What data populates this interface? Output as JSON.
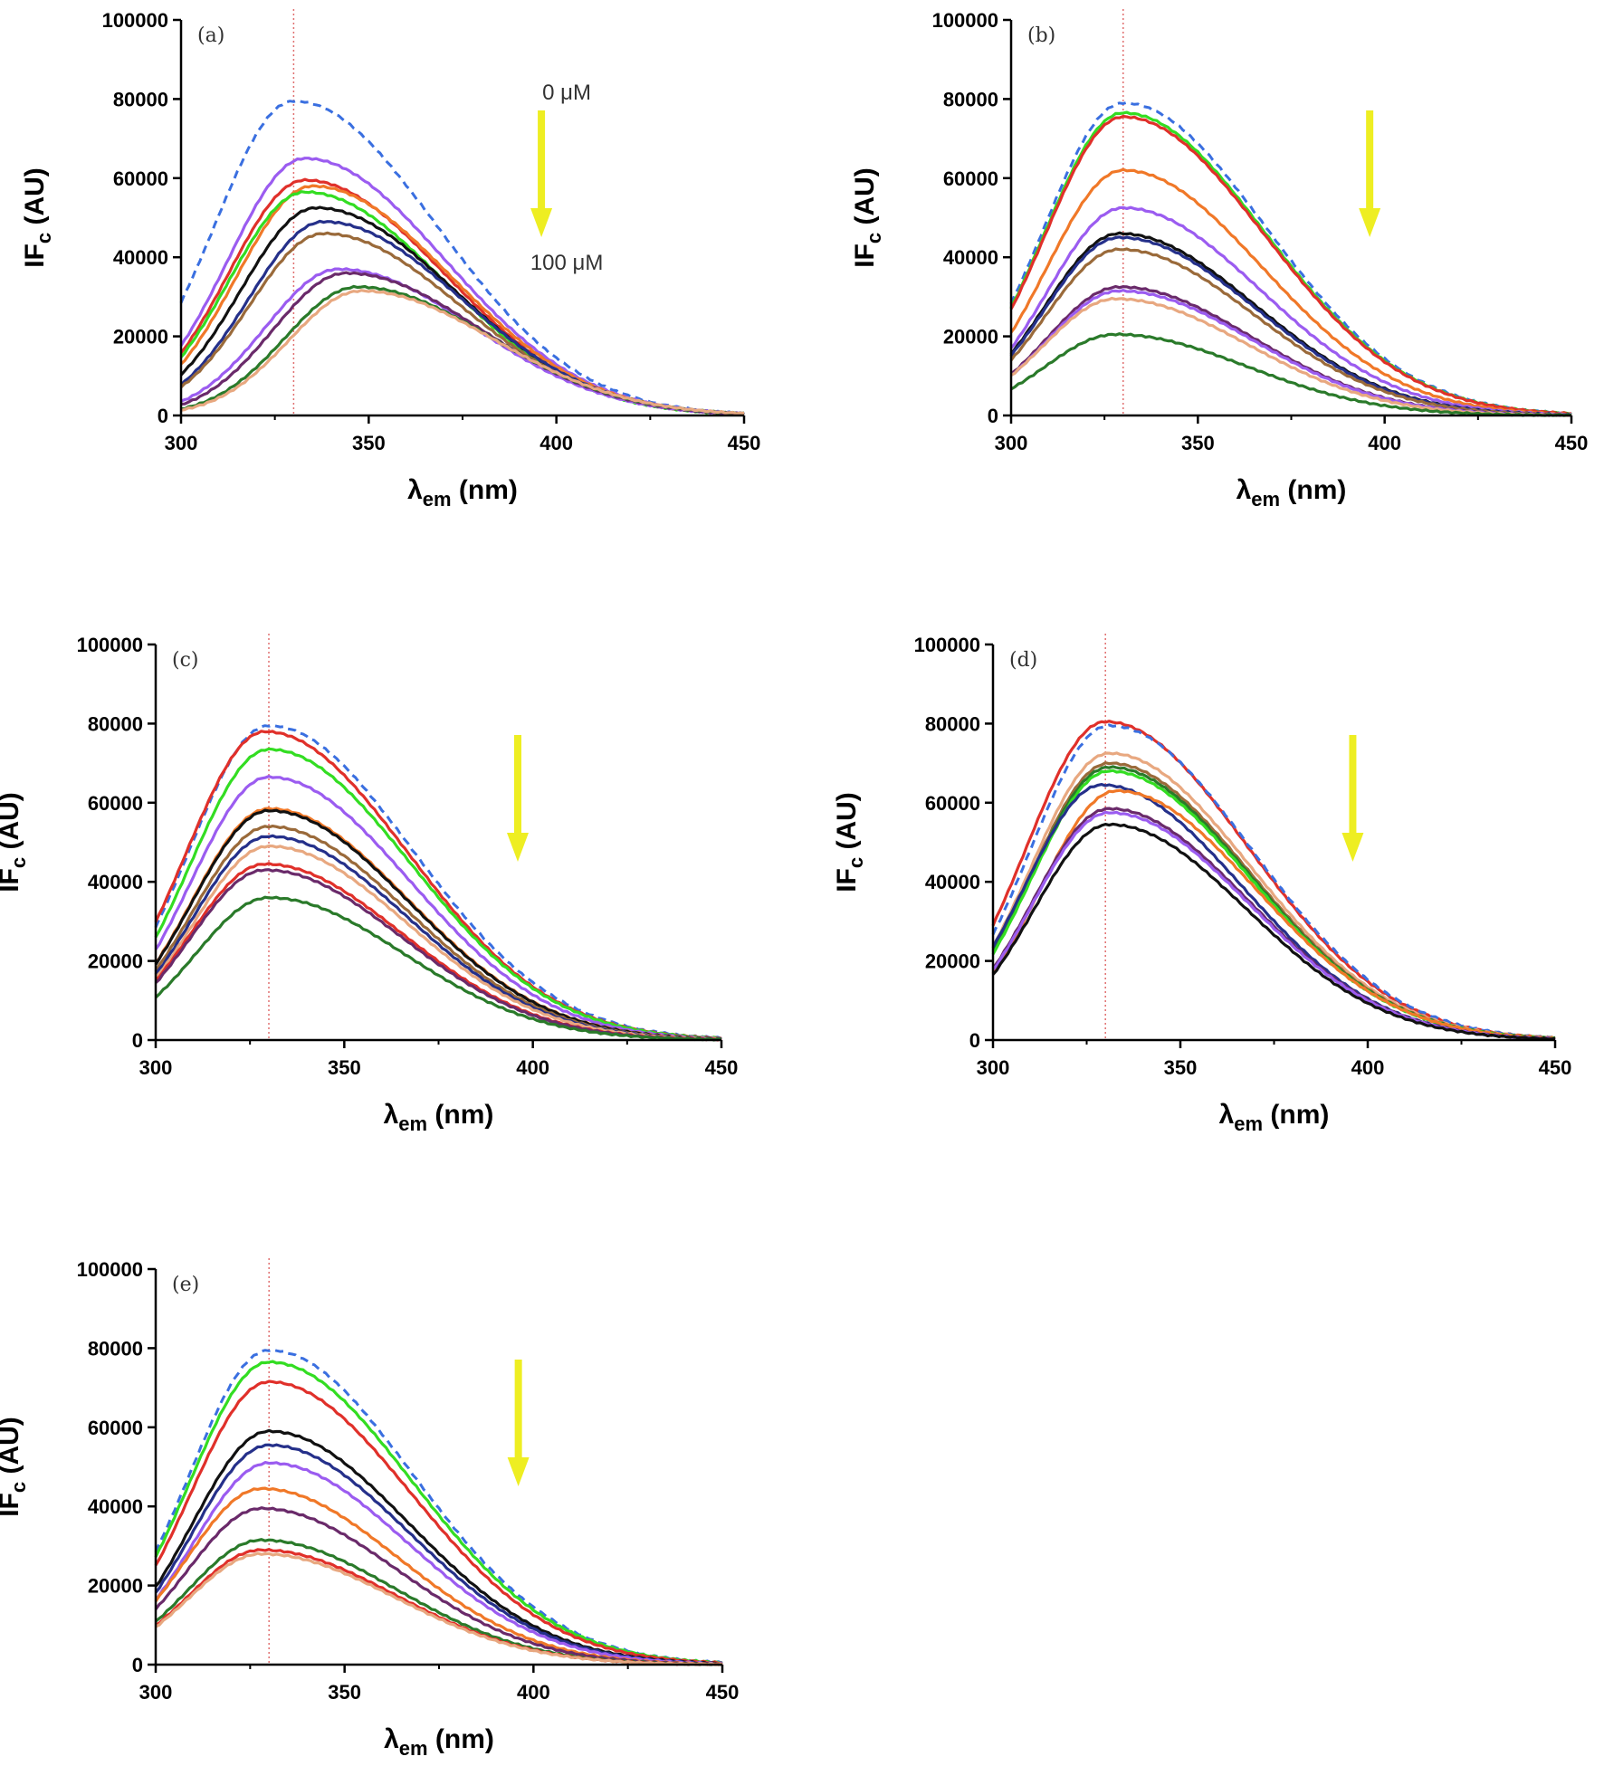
{
  "layout_note_free": true,
  "colors": {
    "c0": "#3a6fe0",
    "c1": "#e0302a",
    "c2": "#33dd22",
    "c3": "#f07828",
    "c4": "#9b5cf0",
    "c5": "#111111",
    "c6": "#25308a",
    "c7": "#9a6a3a",
    "c8": "#6a2a6a",
    "c9": "#e8a880",
    "c10": "#2a7a2a",
    "arrow": "#eeee22",
    "guide": "#e07070"
  },
  "chart_data": [
    {
      "type": "line",
      "panel_label": "(a)",
      "xlabel": "λem (nm)",
      "ylabel": "IFc (AU)",
      "xlim": [
        300,
        450
      ],
      "ylim": [
        0,
        100000
      ],
      "xticks": [
        "300",
        "350",
        "400",
        "450"
      ],
      "yticks": [
        "0",
        "20000",
        "40000",
        "60000",
        "80000",
        "100000"
      ],
      "guide_x": 330,
      "arrow_top_label": "0 μM",
      "arrow_bottom_label": "100 μM",
      "series": [
        {
          "color": "c0",
          "dashed": true,
          "peak_x": 330,
          "peak_y": 79500
        },
        {
          "color": "c4",
          "peak_x": 333,
          "peak_y": 65000
        },
        {
          "color": "c1",
          "peak_x": 333,
          "peak_y": 59500
        },
        {
          "color": "c3",
          "peak_x": 335,
          "peak_y": 58000
        },
        {
          "color": "c2",
          "peak_x": 333,
          "peak_y": 56500
        },
        {
          "color": "c5",
          "peak_x": 336,
          "peak_y": 52500
        },
        {
          "color": "c6",
          "peak_x": 338,
          "peak_y": 49000
        },
        {
          "color": "c7",
          "peak_x": 338,
          "peak_y": 46000
        },
        {
          "color": "c4",
          "peak_x": 342,
          "peak_y": 37000
        },
        {
          "color": "c8",
          "peak_x": 344,
          "peak_y": 36000
        },
        {
          "color": "c10",
          "peak_x": 347,
          "peak_y": 32500
        },
        {
          "color": "c9",
          "peak_x": 348,
          "peak_y": 31500
        }
      ]
    },
    {
      "type": "line",
      "panel_label": "(b)",
      "xlabel": "λem (nm)",
      "ylabel": "IFc (AU)",
      "xlim": [
        300,
        450
      ],
      "ylim": [
        0,
        100000
      ],
      "xticks": [
        "300",
        "350",
        "400",
        "450"
      ],
      "yticks": [
        "0",
        "20000",
        "40000",
        "60000",
        "80000",
        "100000"
      ],
      "guide_x": 330,
      "series": [
        {
          "color": "c0",
          "dashed": true,
          "peak_x": 330,
          "peak_y": 79000
        },
        {
          "color": "c2",
          "peak_x": 330,
          "peak_y": 76500
        },
        {
          "color": "c1",
          "peak_x": 330,
          "peak_y": 75500
        },
        {
          "color": "c3",
          "peak_x": 330,
          "peak_y": 62000
        },
        {
          "color": "c4",
          "peak_x": 330,
          "peak_y": 52500
        },
        {
          "color": "c5",
          "peak_x": 329,
          "peak_y": 46000
        },
        {
          "color": "c6",
          "peak_x": 329,
          "peak_y": 45000
        },
        {
          "color": "c7",
          "peak_x": 329,
          "peak_y": 42000
        },
        {
          "color": "c8",
          "peak_x": 329,
          "peak_y": 32500
        },
        {
          "color": "c4",
          "peak_x": 329,
          "peak_y": 31500
        },
        {
          "color": "c9",
          "peak_x": 328,
          "peak_y": 29500
        },
        {
          "color": "c10",
          "peak_x": 328,
          "peak_y": 20500
        }
      ]
    },
    {
      "type": "line",
      "panel_label": "(c)",
      "xlabel": "λem (nm)",
      "ylabel": "IFc (AU)",
      "xlim": [
        300,
        450
      ],
      "ylim": [
        0,
        100000
      ],
      "xticks": [
        "300",
        "350",
        "400",
        "450"
      ],
      "yticks": [
        "0",
        "20000",
        "40000",
        "60000",
        "80000",
        "100000"
      ],
      "guide_x": 330,
      "series": [
        {
          "color": "c0",
          "dashed": true,
          "peak_x": 330,
          "peak_y": 79500
        },
        {
          "color": "c1",
          "peak_x": 329,
          "peak_y": 78000
        },
        {
          "color": "c2",
          "peak_x": 330,
          "peak_y": 73500
        },
        {
          "color": "c4",
          "peak_x": 330,
          "peak_y": 66500
        },
        {
          "color": "c3",
          "peak_x": 330,
          "peak_y": 58500
        },
        {
          "color": "c5",
          "peak_x": 330,
          "peak_y": 58000
        },
        {
          "color": "c7",
          "peak_x": 330,
          "peak_y": 54000
        },
        {
          "color": "c6",
          "peak_x": 330,
          "peak_y": 51500
        },
        {
          "color": "c9",
          "peak_x": 330,
          "peak_y": 49000
        },
        {
          "color": "c1",
          "peak_x": 329,
          "peak_y": 44500
        },
        {
          "color": "c8",
          "peak_x": 329,
          "peak_y": 43000
        },
        {
          "color": "c10",
          "peak_x": 330,
          "peak_y": 36000
        }
      ]
    },
    {
      "type": "line",
      "panel_label": "(d)",
      "xlabel": "λem (nm)",
      "ylabel": "IFc (AU)",
      "xlim": [
        300,
        450
      ],
      "ylim": [
        0,
        100000
      ],
      "xticks": [
        "300",
        "350",
        "400",
        "450"
      ],
      "yticks": [
        "0",
        "20000",
        "40000",
        "60000",
        "80000",
        "100000"
      ],
      "guide_x": 330,
      "series": [
        {
          "color": "c1",
          "peak_x": 330,
          "peak_y": 80500
        },
        {
          "color": "c0",
          "dashed": true,
          "peak_x": 331,
          "peak_y": 79500
        },
        {
          "color": "c9",
          "peak_x": 331,
          "peak_y": 72500
        },
        {
          "color": "c7",
          "peak_x": 331,
          "peak_y": 70000
        },
        {
          "color": "c10",
          "peak_x": 331,
          "peak_y": 69000
        },
        {
          "color": "c2",
          "peak_x": 331,
          "peak_y": 68000
        },
        {
          "color": "c6",
          "peak_x": 329,
          "peak_y": 64500
        },
        {
          "color": "c3",
          "peak_x": 333,
          "peak_y": 63000
        },
        {
          "color": "c8",
          "peak_x": 331,
          "peak_y": 58500
        },
        {
          "color": "c4",
          "peak_x": 331,
          "peak_y": 57500
        },
        {
          "color": "c5",
          "peak_x": 331,
          "peak_y": 54500
        }
      ]
    },
    {
      "type": "line",
      "panel_label": "(e)",
      "xlabel": "λem (nm)",
      "ylabel": "IFc (AU)",
      "xlim": [
        300,
        450
      ],
      "ylim": [
        0,
        100000
      ],
      "xticks": [
        "300",
        "350",
        "400",
        "450"
      ],
      "yticks": [
        "0",
        "20000",
        "40000",
        "60000",
        "80000",
        "100000"
      ],
      "guide_x": 330,
      "series": [
        {
          "color": "c0",
          "dashed": true,
          "peak_x": 330,
          "peak_y": 79500
        },
        {
          "color": "c2",
          "peak_x": 330,
          "peak_y": 76500
        },
        {
          "color": "c1",
          "peak_x": 330,
          "peak_y": 71500
        },
        {
          "color": "c5",
          "peak_x": 330,
          "peak_y": 59000
        },
        {
          "color": "c6",
          "peak_x": 330,
          "peak_y": 55500
        },
        {
          "color": "c4",
          "peak_x": 330,
          "peak_y": 51000
        },
        {
          "color": "c3",
          "peak_x": 328,
          "peak_y": 44500
        },
        {
          "color": "c8",
          "peak_x": 328,
          "peak_y": 39500
        },
        {
          "color": "c10",
          "peak_x": 328,
          "peak_y": 31500
        },
        {
          "color": "c1",
          "peak_x": 328,
          "peak_y": 29000
        },
        {
          "color": "c9",
          "peak_x": 328,
          "peak_y": 28000
        }
      ]
    }
  ]
}
